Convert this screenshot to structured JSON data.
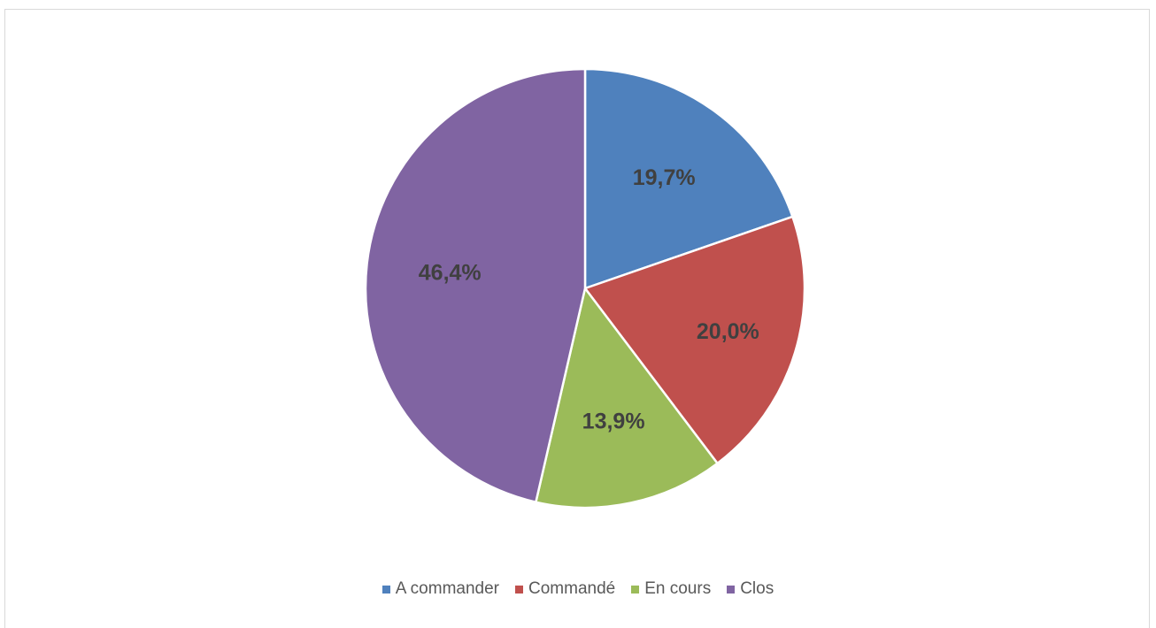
{
  "chart_data": {
    "type": "pie",
    "title": "",
    "categories": [
      "A commander",
      "Commandé",
      "En cours",
      "Clos"
    ],
    "values": [
      19.7,
      20.0,
      13.9,
      46.4
    ],
    "labels": [
      "19,7%",
      "20,0%",
      "13,9%",
      "46,4%"
    ],
    "colors": [
      "#4f81bd",
      "#c0504d",
      "#9bbb59",
      "#8064a2"
    ],
    "legend_position": "bottom",
    "start_angle": "12 o'clock, clockwise"
  }
}
